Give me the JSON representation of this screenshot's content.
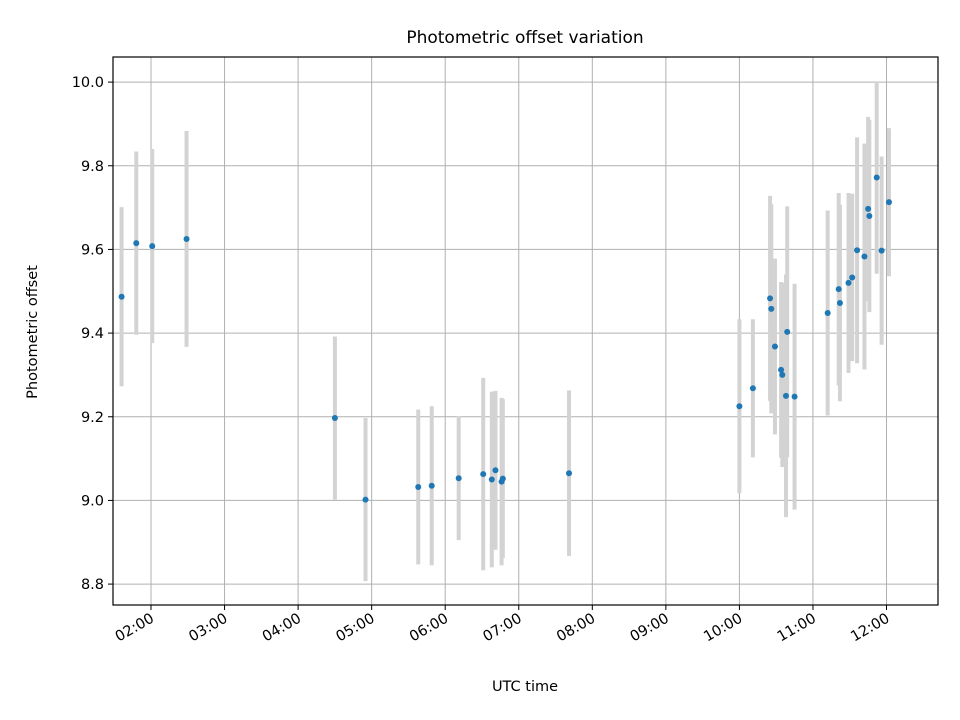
{
  "chart_data": {
    "type": "scatter",
    "title": "Photometric offset variation",
    "xlabel": "UTC time",
    "ylabel": "Photometric offset",
    "x_axis_kind": "time-of-day",
    "xlim": [
      "01:29",
      "12:42"
    ],
    "ylim": [
      8.75,
      10.06
    ],
    "grid": true,
    "x_ticks": [
      "02:00",
      "03:00",
      "04:00",
      "05:00",
      "06:00",
      "07:00",
      "08:00",
      "09:00",
      "10:00",
      "11:00",
      "12:00"
    ],
    "y_ticks": [
      8.8,
      9.0,
      9.2,
      9.4,
      9.6,
      9.8,
      10.0
    ],
    "colors": {
      "point": "#1f77b4",
      "errorbar": "#d3d3d3",
      "grid": "#b0b0b0"
    },
    "points": [
      {
        "x": "01:36",
        "y": 9.487,
        "err": 0.214
      },
      {
        "x": "01:48",
        "y": 9.615,
        "err": 0.219
      },
      {
        "x": "02:01",
        "y": 9.608,
        "err": 0.232
      },
      {
        "x": "02:29",
        "y": 9.625,
        "err": 0.258
      },
      {
        "x": "04:30",
        "y": 9.197,
        "err": 0.195
      },
      {
        "x": "04:55",
        "y": 9.002,
        "err": 0.195
      },
      {
        "x": "05:38",
        "y": 9.032,
        "err": 0.185
      },
      {
        "x": "05:49",
        "y": 9.035,
        "err": 0.19
      },
      {
        "x": "06:11",
        "y": 9.053,
        "err": 0.148
      },
      {
        "x": "06:31",
        "y": 9.063,
        "err": 0.23
      },
      {
        "x": "06:38",
        "y": 9.05,
        "err": 0.21
      },
      {
        "x": "06:41",
        "y": 9.072,
        "err": 0.19
      },
      {
        "x": "06:46",
        "y": 9.045,
        "err": 0.2
      },
      {
        "x": "06:47",
        "y": 9.052,
        "err": 0.19
      },
      {
        "x": "07:41",
        "y": 9.065,
        "err": 0.198
      },
      {
        "x": "10:00",
        "y": 9.225,
        "err": 0.208
      },
      {
        "x": "10:11",
        "y": 9.268,
        "err": 0.165
      },
      {
        "x": "10:25",
        "y": 9.483,
        "err": 0.245
      },
      {
        "x": "10:26",
        "y": 9.458,
        "err": 0.25
      },
      {
        "x": "10:29",
        "y": 9.368,
        "err": 0.21
      },
      {
        "x": "10:34",
        "y": 9.312,
        "err": 0.21
      },
      {
        "x": "10:35",
        "y": 9.3,
        "err": 0.22
      },
      {
        "x": "10:38",
        "y": 9.25,
        "err": 0.29
      },
      {
        "x": "10:39",
        "y": 9.403,
        "err": 0.3
      },
      {
        "x": "10:45",
        "y": 9.248,
        "err": 0.27
      },
      {
        "x": "11:12",
        "y": 9.448,
        "err": 0.245
      },
      {
        "x": "11:21",
        "y": 9.505,
        "err": 0.23
      },
      {
        "x": "11:22",
        "y": 9.472,
        "err": 0.235
      },
      {
        "x": "11:29",
        "y": 9.52,
        "err": 0.215
      },
      {
        "x": "11:32",
        "y": 9.533,
        "err": 0.2
      },
      {
        "x": "11:36",
        "y": 9.598,
        "err": 0.27
      },
      {
        "x": "11:42",
        "y": 9.583,
        "err": 0.27
      },
      {
        "x": "11:45",
        "y": 9.697,
        "err": 0.22
      },
      {
        "x": "11:46",
        "y": 9.68,
        "err": 0.23
      },
      {
        "x": "11:52",
        "y": 9.772,
        "err": 0.23
      },
      {
        "x": "11:56",
        "y": 9.597,
        "err": 0.225
      },
      {
        "x": "12:02",
        "y": 9.713,
        "err": 0.177
      }
    ]
  }
}
